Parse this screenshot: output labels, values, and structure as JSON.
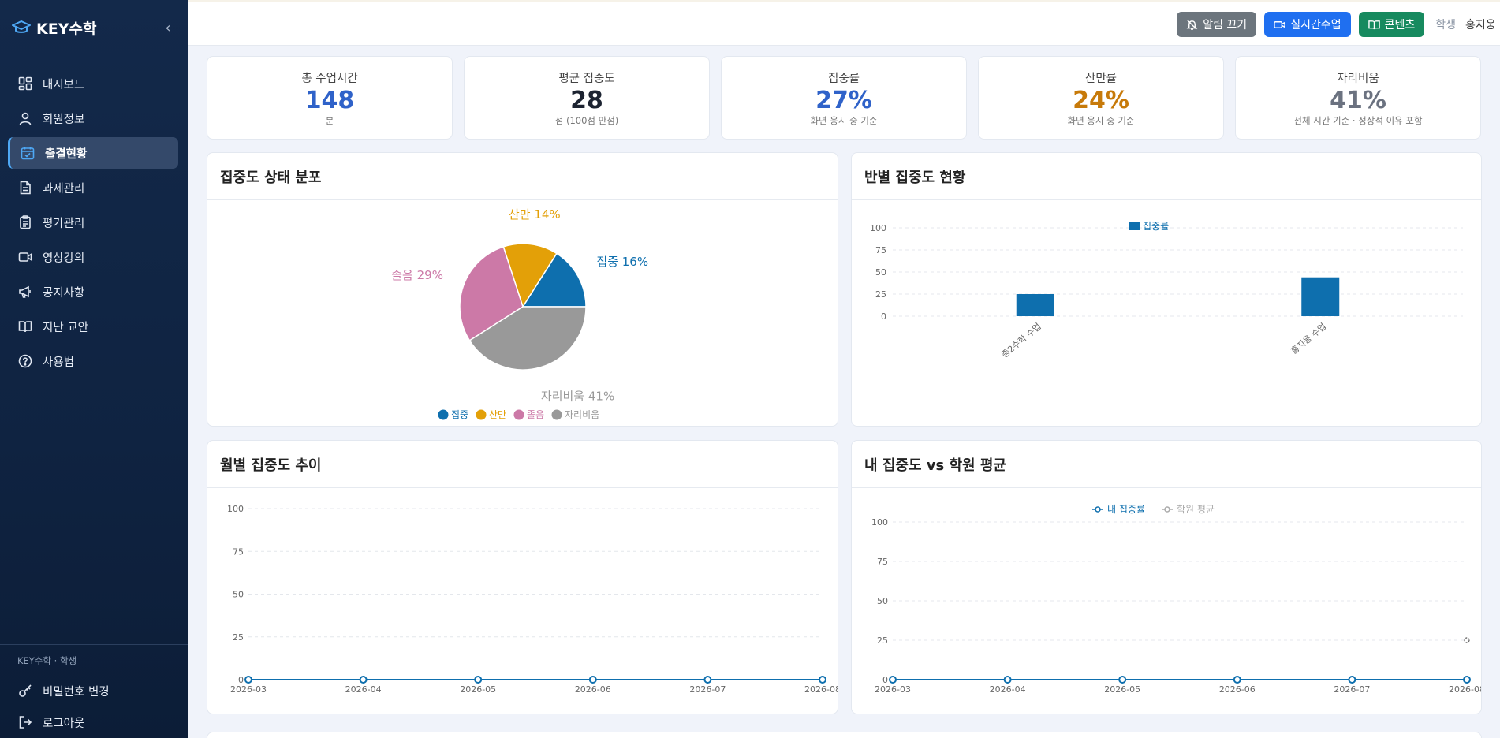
{
  "app": {
    "name": "KEY수학",
    "collapse_glyph": "‹"
  },
  "sidebar": {
    "items": [
      {
        "label": "대시보드",
        "icon": "dashboard-icon",
        "active": false
      },
      {
        "label": "회원정보",
        "icon": "user-icon",
        "active": false
      },
      {
        "label": "출결현황",
        "icon": "calendar-check-icon",
        "active": true
      },
      {
        "label": "과제관리",
        "icon": "document-icon",
        "active": false
      },
      {
        "label": "평가관리",
        "icon": "clipboard-icon",
        "active": false
      },
      {
        "label": "영상강의",
        "icon": "video-icon",
        "active": false
      },
      {
        "label": "공지사항",
        "icon": "megaphone-icon",
        "active": false
      },
      {
        "label": "지난 교안",
        "icon": "book-icon",
        "active": false
      },
      {
        "label": "사용법",
        "icon": "help-circle-icon",
        "active": false
      }
    ],
    "footer_caption": "KEY수학 · 학생",
    "footer_items": [
      {
        "label": "비밀번호 변경",
        "icon": "key-icon"
      },
      {
        "label": "로그아웃",
        "icon": "logout-icon"
      }
    ]
  },
  "header": {
    "mute_label": "알림 끄기",
    "live_label": "실시간수업",
    "content_label": "콘텐츠",
    "role": "학생",
    "username": "홍지웅"
  },
  "stats": [
    {
      "label": "총 수업시간",
      "value": "148",
      "sub": "분",
      "color": "#2f62c9"
    },
    {
      "label": "평균 집중도",
      "value": "28",
      "sub": "점 (100점 만점)",
      "color": "#1c2331"
    },
    {
      "label": "집중률",
      "value": "27%",
      "sub": "화면 응시 중 기준",
      "color": "#2f62c9"
    },
    {
      "label": "산만률",
      "value": "24%",
      "sub": "화면 응시 중 기준",
      "color": "#c77a0a"
    },
    {
      "label": "자리비움",
      "value": "41%",
      "sub": "전체 시간 기준 · 정상적 이유 포함",
      "color": "#6b7280"
    }
  ],
  "panels": {
    "pie_title": "집중도 상태 분포",
    "bar_title": "반별 집중도 현황",
    "trend_title": "월별 집중도 추이",
    "compare_title": "내 집중도 vs 학원 평균"
  },
  "chart_data": [
    {
      "type": "pie",
      "title": "집중도 상태 분포",
      "labels": [
        "집중",
        "산만",
        "졸음",
        "자리비움"
      ],
      "values": [
        16,
        14,
        29,
        41
      ],
      "slice_labels": [
        "집중 16%",
        "산만 14%",
        "졸음 29%",
        "자리비움 41%"
      ],
      "colors": [
        "#0e6fae",
        "#e3a008",
        "#cc79a7",
        "#999999"
      ],
      "legend": "bottom"
    },
    {
      "type": "bar",
      "title": "반별 집중도 현황",
      "categories": [
        "중2수학 수업",
        "홍지웅 수업"
      ],
      "series": [
        {
          "name": "집중률",
          "values": [
            25,
            44
          ],
          "color": "#0e6fae"
        }
      ],
      "ylim": [
        0,
        100
      ],
      "yticks": [
        "0",
        "25",
        "50",
        "75",
        "100"
      ],
      "legend": "top",
      "grid": true
    },
    {
      "type": "line",
      "title": "월별 집중도 추이",
      "x": [
        "2026-03",
        "2026-04",
        "2026-05",
        "2026-06",
        "2026-07",
        "2026-08"
      ],
      "series": [
        {
          "values": [
            0,
            0,
            0,
            0,
            0,
            0
          ],
          "color": "#0e6fae"
        }
      ],
      "ylim": [
        0,
        100
      ],
      "yticks": [
        "0",
        "25",
        "50",
        "75",
        "100"
      ],
      "grid": true
    },
    {
      "type": "line",
      "title": "내 집중도 vs 학원 평균",
      "x": [
        "2026-03",
        "2026-04",
        "2026-05",
        "2026-06",
        "2026-07",
        "2026-08"
      ],
      "series": [
        {
          "name": "내 집중률",
          "values": [
            0,
            0,
            0,
            0,
            0,
            0
          ],
          "color": "#0e6fae"
        },
        {
          "name": "학원 평균",
          "values": [
            null,
            null,
            null,
            null,
            null,
            25
          ],
          "color": "#aaaaaa"
        }
      ],
      "ylim": [
        0,
        100
      ],
      "yticks": [
        "0",
        "25",
        "50",
        "75",
        "100"
      ],
      "legend": "top",
      "grid": true
    }
  ]
}
